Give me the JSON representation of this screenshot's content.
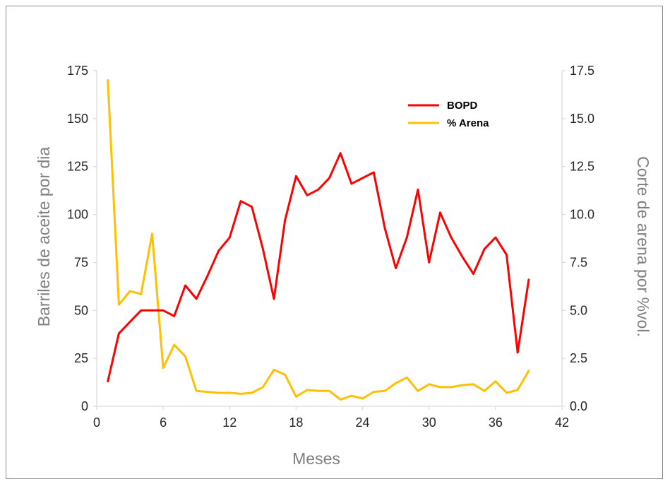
{
  "chart_data": {
    "type": "line",
    "xlabel": "Meses",
    "ylabel": "Barriles de aceite por dia",
    "y2label": "Corte de arena por %vol.",
    "xlim": [
      0,
      42
    ],
    "ylim": [
      0,
      175
    ],
    "y2lim": [
      0,
      17.5
    ],
    "x_ticks": [
      "0",
      "6",
      "12",
      "18",
      "24",
      "30",
      "36",
      "42"
    ],
    "y_ticks": [
      "0",
      "25",
      "50",
      "75",
      "100",
      "125",
      "150",
      "175"
    ],
    "y2_ticks": [
      "0.0",
      "2.5",
      "5.0",
      "7.5",
      "10.0",
      "12.5",
      "15.0",
      "17.5"
    ],
    "grid": false,
    "legend_position": "top-right",
    "series": [
      {
        "name": "BOPD",
        "axis": "left",
        "color": "#ff0000",
        "x": [
          1,
          2,
          3,
          4,
          5,
          6,
          7,
          8,
          9,
          10,
          11,
          12,
          13,
          14,
          15,
          16,
          17,
          18,
          19,
          20,
          21,
          22,
          23,
          24,
          25,
          26,
          27,
          28,
          29,
          30,
          31,
          32,
          33,
          34,
          35,
          36,
          37,
          38,
          39
        ],
        "values": [
          13,
          38,
          44,
          50,
          50,
          50,
          47,
          63,
          56,
          68,
          81,
          88,
          107,
          104,
          82,
          56,
          97,
          120,
          110,
          113,
          119,
          132,
          116,
          119,
          122,
          93,
          72,
          88,
          113,
          75,
          101,
          88,
          78,
          69,
          82,
          88,
          79,
          28,
          66
        ]
      },
      {
        "name": "% Arena",
        "axis": "right",
        "color": "#ffc000",
        "x": [
          1,
          2,
          3,
          4,
          5,
          6,
          7,
          8,
          9,
          10,
          11,
          12,
          13,
          14,
          15,
          16,
          17,
          18,
          19,
          20,
          21,
          22,
          23,
          24,
          25,
          26,
          27,
          28,
          29,
          30,
          31,
          32,
          33,
          34,
          35,
          36,
          37,
          38,
          39
        ],
        "values": [
          17.0,
          5.3,
          6.0,
          5.85,
          9.0,
          2.0,
          3.2,
          2.6,
          0.8,
          0.75,
          0.7,
          0.7,
          0.65,
          0.7,
          1.0,
          1.9,
          1.65,
          0.5,
          0.85,
          0.8,
          0.8,
          0.35,
          0.55,
          0.4,
          0.75,
          0.8,
          1.2,
          1.5,
          0.8,
          1.15,
          1.0,
          1.0,
          1.1,
          1.15,
          0.8,
          1.3,
          0.7,
          0.85,
          1.85
        ]
      }
    ]
  }
}
